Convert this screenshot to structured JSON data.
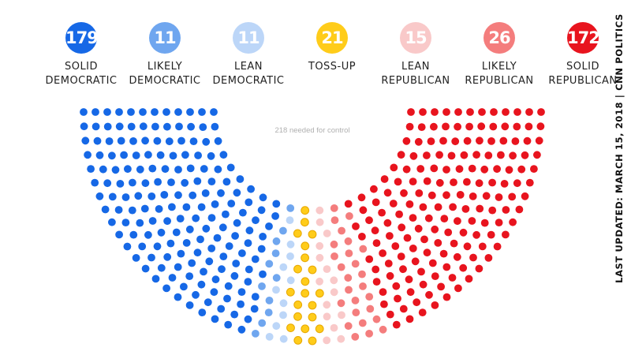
{
  "chart_data": {
    "type": "parliament",
    "title": "",
    "note": "218 needed for control",
    "footer": "LAST UPDATED: MARCH 15, 2018 | CNN POLITICS",
    "categories": [
      {
        "key": "solid-dem",
        "count": "179",
        "label_line1": "SOLID",
        "label_line2": "DEMOCRATIC",
        "color": "#1668e6",
        "outline": "#1668e6"
      },
      {
        "key": "likely-dem",
        "count": "11",
        "label_line1": "LIKELY",
        "label_line2": "DEMOCRATIC",
        "color": "#6fa6ef",
        "outline": "#6fa6ef"
      },
      {
        "key": "lean-dem",
        "count": "11",
        "label_line1": "LEAN",
        "label_line2": "DEMOCRATIC",
        "color": "#bcd6f8",
        "outline": "#bcd6f8"
      },
      {
        "key": "toss-up",
        "count": "21",
        "label_line1": "TOSS-UP",
        "label_line2": "",
        "color": "#ffcc1a",
        "outline": "#e8a800"
      },
      {
        "key": "lean-rep",
        "count": "15",
        "label_line1": "LEAN",
        "label_line2": "REPUBLICAN",
        "color": "#f9c9c9",
        "outline": "#f9c9c9"
      },
      {
        "key": "likely-rep",
        "count": "26",
        "label_line1": "LIKELY",
        "label_line2": "REPUBLICAN",
        "color": "#f47d7d",
        "outline": "#f47d7d"
      },
      {
        "key": "solid-rep",
        "count": "172",
        "label_line1": "SOLID",
        "label_line2": "REPUBLICAN",
        "color": "#e8141e",
        "outline": "#e8141e"
      }
    ]
  }
}
